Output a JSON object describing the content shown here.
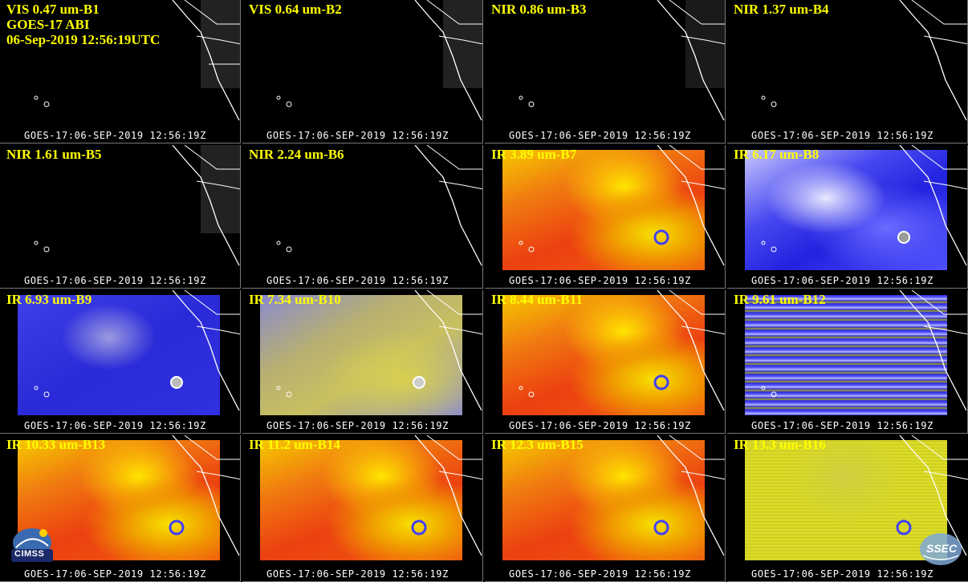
{
  "header": {
    "band_label": "VIS 0.47 um-B1",
    "satellite": "GOES-17 ABI",
    "datetime": "06-Sep-2019 12:56:19UTC"
  },
  "panels": [
    {
      "label": "VIS 0.47 um-B1",
      "stamp": "GOES-17:06-SEP-2019 12:56:19Z",
      "style": "vis"
    },
    {
      "label": "VIS 0.64 um-B2",
      "stamp": "GOES-17:06-SEP-2019 12:56:19Z",
      "style": "vis"
    },
    {
      "label": "NIR 0.86 um-B3",
      "stamp": "GOES-17:06-SEP-2019 12:56:19Z",
      "style": "vis"
    },
    {
      "label": "NIR 1.37 um-B4",
      "stamp": "GOES-17:06-SEP-2019 12:56:19Z",
      "style": "vis"
    },
    {
      "label": "NIR 1.61 um-B5",
      "stamp": "GOES-17:06-SEP-2019 12:56:19Z",
      "style": "vis"
    },
    {
      "label": "NIR 2.24 um-B6",
      "stamp": "GOES-17:06-SEP-2019 12:56:19Z",
      "style": "vis"
    },
    {
      "label": "IR 3.89 um-B7",
      "stamp": "GOES-17:06-SEP-2019 12:56:19Z",
      "style": "warm"
    },
    {
      "label": "IR 6.17 um-B8",
      "stamp": "GOES-17:06-SEP-2019 12:56:19Z",
      "style": "wv"
    },
    {
      "label": "IR 6.93 um-B9",
      "stamp": "GOES-17:06-SEP-2019 12:56:19Z",
      "style": "wv9"
    },
    {
      "label": "IR 7.34 um-B10",
      "stamp": "GOES-17:06-SEP-2019 12:56:19Z",
      "style": "wv10"
    },
    {
      "label": "IR 8.44 um-B11",
      "stamp": "GOES-17:06-SEP-2019 12:56:19Z",
      "style": "warm"
    },
    {
      "label": "IR 9.61 um-B12",
      "stamp": "GOES-17:06-SEP-2019 12:56:19Z",
      "style": "b12"
    },
    {
      "label": "IR 10.33 um-B13",
      "stamp": "GOES-17:06-SEP-2019 12:56:19Z",
      "style": "warm"
    },
    {
      "label": "IR 11.2 um-B14",
      "stamp": "GOES-17:06-SEP-2019 12:56:19Z",
      "style": "warm"
    },
    {
      "label": "IR 12.3 um-B15",
      "stamp": "GOES-17:06-SEP-2019 12:56:19Z",
      "style": "warm"
    },
    {
      "label": "IR 13.3 um-B16",
      "stamp": "GOES-17:06-SEP-2019 12:56:19Z",
      "style": "b16"
    }
  ],
  "logos": {
    "left": "CIMSS",
    "right": "SSEC"
  }
}
